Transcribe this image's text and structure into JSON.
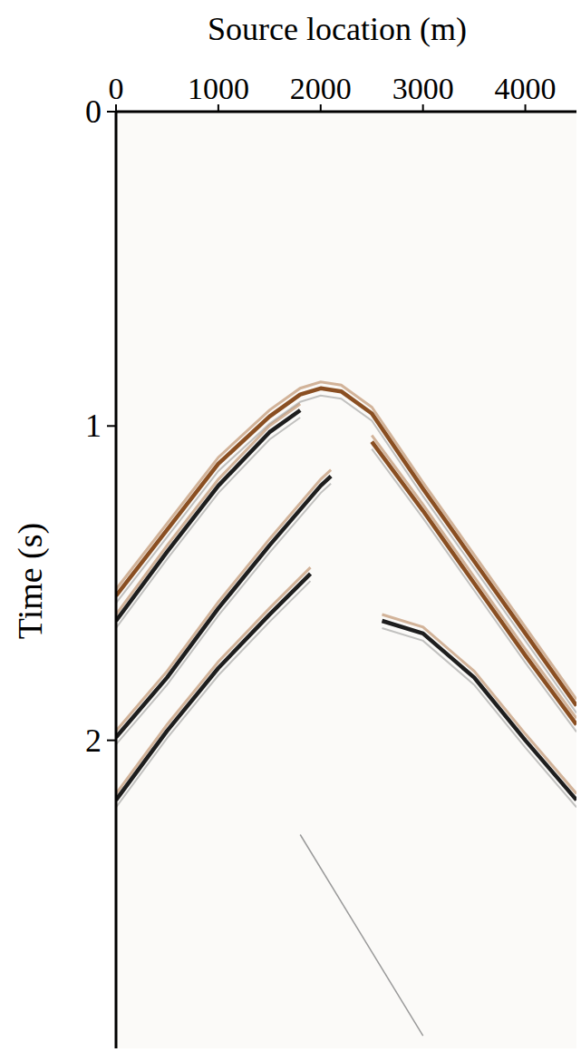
{
  "chart_data": {
    "type": "line",
    "x_label": "Source location (m)",
    "y_label": "Time (s)",
    "xlim": [
      0,
      4500
    ],
    "ylim": [
      0,
      2.98
    ],
    "xticks": [
      0,
      1000,
      2000,
      3000,
      4000
    ],
    "yticks": [
      0,
      1,
      2
    ],
    "grid": false,
    "series": [
      {
        "color": "#8a4f22",
        "x": [
          0,
          500,
          1000,
          1500,
          1800,
          2000,
          2200,
          2500,
          3000,
          3500,
          4000,
          4500
        ],
        "values": [
          1.54,
          1.33,
          1.12,
          0.97,
          0.9,
          0.88,
          0.89,
          0.96,
          1.2,
          1.43,
          1.66,
          1.89
        ]
      },
      {
        "color": "#1e1e1e",
        "x": [
          0,
          500,
          1000,
          1500,
          1800
        ],
        "values": [
          1.62,
          1.4,
          1.19,
          1.02,
          0.95
        ]
      },
      {
        "color": "#1e1e1e",
        "x": [
          0,
          500,
          1000,
          1500,
          2000,
          2100
        ],
        "values": [
          1.99,
          1.8,
          1.58,
          1.38,
          1.19,
          1.16
        ]
      },
      {
        "color": "#1e1e1e",
        "x": [
          0,
          500,
          1000,
          1500,
          1900
        ],
        "values": [
          2.19,
          1.97,
          1.77,
          1.6,
          1.47
        ]
      },
      {
        "color": "#1e1e1e",
        "x": [
          2600,
          3000,
          3500,
          4000,
          4500
        ],
        "values": [
          1.62,
          1.66,
          1.8,
          2.0,
          2.19
        ]
      },
      {
        "color": "#8a4f22",
        "x": [
          2500,
          3000,
          3500,
          4000,
          4500
        ],
        "values": [
          1.05,
          1.27,
          1.5,
          1.73,
          1.95
        ]
      },
      {
        "color": "#9a9a9a",
        "x": [
          1800,
          3000
        ],
        "values": [
          2.3,
          2.94
        ]
      }
    ]
  }
}
